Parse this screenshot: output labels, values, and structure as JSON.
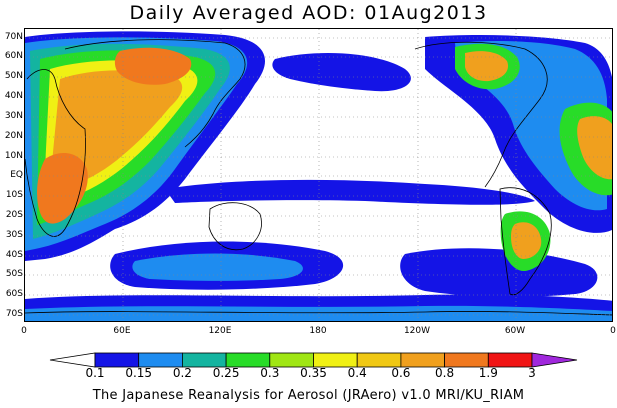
{
  "title": "Daily Averaged AOD: 01Aug2013",
  "credit": "The Japanese Reanalysis for Aerosol (JRAero) v1.0 MRI/KU_RIAM",
  "lat_labels": [
    "70N",
    "60N",
    "50N",
    "40N",
    "30N",
    "20N",
    "10N",
    "EQ",
    "10S",
    "20S",
    "30S",
    "40S",
    "50S",
    "60S",
    "70S"
  ],
  "lon_labels": [
    "0",
    "60E",
    "120E",
    "180",
    "120W",
    "60W",
    "0"
  ],
  "legend": {
    "labels": [
      "0.1",
      "0.15",
      "0.2",
      "0.25",
      "0.3",
      "0.35",
      "0.4",
      "0.6",
      "0.8",
      "1.9",
      "3"
    ],
    "colors": [
      "#ffffff",
      "#1414e6",
      "#1e8cf0",
      "#14b4a0",
      "#28dc28",
      "#a0e614",
      "#f0f014",
      "#f0c814",
      "#f0a01e",
      "#f0781e",
      "#f01414",
      "#a028dc"
    ]
  }
}
